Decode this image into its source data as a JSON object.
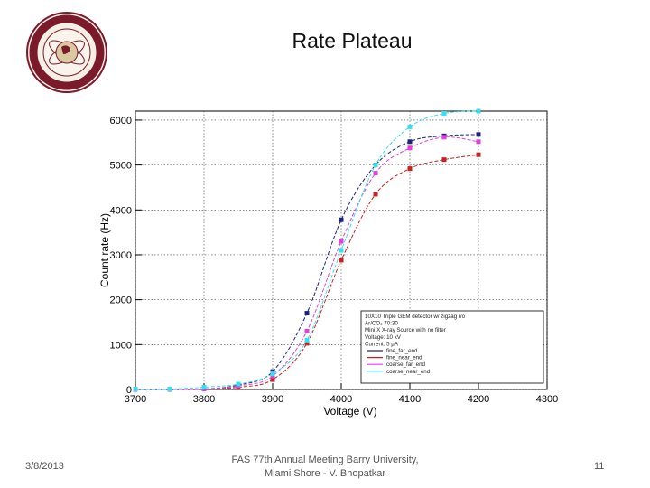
{
  "slide": {
    "title": "Rate Plateau",
    "footer_date": "3/8/2013",
    "footer_line1": "FAS 77th Annual Meeting Barry University,",
    "footer_line2": "Miami Shore - V. Bhopatkar",
    "number": "11"
  },
  "logo_text": "FLORIDA INSTITUTE OF TECHNOLOGY",
  "colors": {
    "fine_far": "#1a237e",
    "fine_near": "#cc1f1f",
    "coarse_far": "#e040e0",
    "coarse_near": "#33e0f0",
    "logo_ring": "#7a1a2a"
  },
  "chart_data": {
    "type": "line",
    "xlabel": "Voltage (V)",
    "ylabel": "Count rate (Hz)",
    "xlim": [
      3700,
      4300
    ],
    "ylim": [
      0,
      6200
    ],
    "xticks": [
      3700,
      3800,
      3900,
      4000,
      4100,
      4200,
      4300
    ],
    "yticks": [
      0,
      1000,
      2000,
      3000,
      4000,
      5000,
      6000
    ],
    "grid": true,
    "legend_placement": "bottom-right",
    "legend_header": [
      "10X10 Triple GEM detector w/ zigzag r/o",
      "Ar/CO₂ 70:30",
      "Mini X X-ray Source with no filter",
      "Voltage: 10 kV",
      "Current: 5 μA"
    ],
    "series": [
      {
        "name": "fine_far_end",
        "color": "#1a237e",
        "x": [
          3700,
          3750,
          3800,
          3850,
          3900,
          3950,
          4000,
          4050,
          4100,
          4150,
          4200
        ],
        "y": [
          0,
          0,
          10,
          100,
          400,
          1700,
          3780,
          5000,
          5520,
          5650,
          5680
        ]
      },
      {
        "name": "fine_near_end",
        "color": "#cc1f1f",
        "x": [
          3700,
          3750,
          3800,
          3850,
          3900,
          3950,
          4000,
          4050,
          4100,
          4150,
          4200
        ],
        "y": [
          0,
          0,
          10,
          50,
          220,
          1030,
          2880,
          4350,
          4920,
          5120,
          5230
        ]
      },
      {
        "name": "coarse_far_end",
        "color": "#e040e0",
        "x": [
          3700,
          3750,
          3800,
          3850,
          3900,
          3950,
          4000,
          4050,
          4100,
          4150,
          4200
        ],
        "y": [
          0,
          0,
          10,
          80,
          300,
          1300,
          3300,
          4820,
          5380,
          5620,
          5520
        ]
      },
      {
        "name": "coarse_near_end",
        "color": "#33e0f0",
        "x": [
          3700,
          3750,
          3800,
          3850,
          3900,
          3950,
          4000,
          4050,
          4100,
          4150,
          4200
        ],
        "y": [
          10,
          10,
          50,
          120,
          350,
          1100,
          3100,
          5000,
          5850,
          6150,
          6200
        ]
      }
    ]
  }
}
